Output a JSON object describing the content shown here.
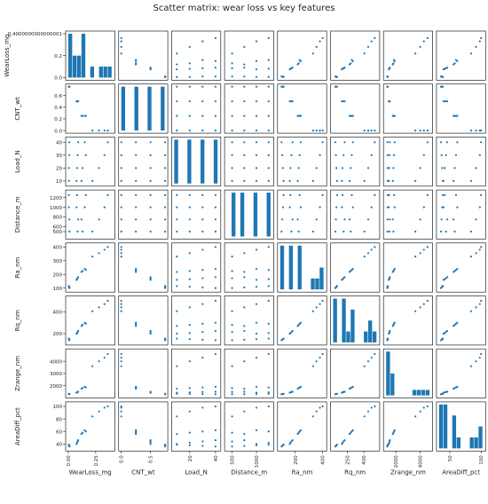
{
  "chart_data": {
    "type": "scatter",
    "title": "Scatter matrix: wear loss vs key features",
    "grid": false,
    "point_color": "#1f77b4",
    "variables": [
      {
        "name": "WearLoss_mg",
        "range": [
          0,
          0.4
        ],
        "ticks": [
          0.0,
          0.2,
          0.4
        ],
        "x_tick_labels": [
          "0.00",
          "0.25"
        ],
        "x_tick_values": [
          0.0,
          0.25
        ],
        "y_tick_labels": [
          "0.0",
          "0.2",
          "0.4000000000000001"
        ],
        "y_tick_values": [
          0.0,
          0.2,
          0.4
        ]
      },
      {
        "name": "CNT_wt",
        "range": [
          0,
          0.75
        ],
        "x_tick_labels": [
          "0.0",
          "0.5"
        ],
        "x_tick_values": [
          0.0,
          0.5
        ],
        "y_tick_labels": [
          "0.0",
          "0.2",
          "0.4",
          "0.6"
        ],
        "y_tick_values": [
          0.0,
          0.2,
          0.4,
          0.6
        ]
      },
      {
        "name": "Load_N",
        "range": [
          8,
          42
        ],
        "x_tick_labels": [
          "20",
          "40"
        ],
        "x_tick_values": [
          20,
          40
        ],
        "y_tick_labels": [
          "10",
          "20",
          "30",
          "40"
        ],
        "y_tick_values": [
          10,
          20,
          30,
          40
        ]
      },
      {
        "name": "Distance_m",
        "range": [
          400,
          1300
        ],
        "x_tick_labels": [
          "500",
          "1000"
        ],
        "x_tick_values": [
          500,
          1000
        ],
        "y_tick_labels": [
          "500",
          "600",
          "800",
          "1000",
          "1200"
        ],
        "y_tick_values": [
          500,
          600,
          800,
          1000,
          1200
        ]
      },
      {
        "name": "Ra_nm",
        "range": [
          90,
          410
        ],
        "x_tick_labels": [
          "200",
          "400"
        ],
        "x_tick_values": [
          200,
          400
        ],
        "y_tick_labels": [
          "100",
          "200",
          "300",
          "400"
        ],
        "y_tick_values": [
          100,
          200,
          300,
          400
        ]
      },
      {
        "name": "Rq_nm",
        "range": [
          120,
          520
        ],
        "x_tick_labels": [
          "250",
          "400"
        ],
        "x_tick_values": [
          250,
          400
        ],
        "y_tick_labels": [
          "200",
          "400"
        ],
        "y_tick_values": [
          200,
          400
        ]
      },
      {
        "name": "Zrange_nm",
        "range": [
          1200,
          4800
        ],
        "x_tick_labels": [
          "2000",
          "4000"
        ],
        "x_tick_values": [
          2000,
          4000
        ],
        "y_tick_labels": [
          "2000",
          "3000",
          "4000"
        ],
        "y_tick_values": [
          2000,
          3000,
          4000
        ]
      },
      {
        "name": "AreaDiff_pct",
        "range": [
          33,
          103
        ],
        "x_tick_labels": [
          "50",
          "100"
        ],
        "x_tick_values": [
          50,
          100
        ],
        "y_tick_labels": [
          "40",
          "60",
          "80",
          "100"
        ],
        "y_tick_values": [
          40,
          60,
          80,
          100
        ]
      }
    ],
    "samples": [
      {
        "WearLoss_mg": 0.36,
        "CNT_wt": 0.0,
        "Load_N": 40,
        "Distance_m": 1250,
        "Ra_nm": 400,
        "Rq_nm": 500,
        "Zrange_nm": 4600,
        "AreaDiff_pct": 100
      },
      {
        "WearLoss_mg": 0.33,
        "CNT_wt": 0.0,
        "Load_N": 30,
        "Distance_m": 1000,
        "Ra_nm": 380,
        "Rq_nm": 470,
        "Zrange_nm": 4300,
        "AreaDiff_pct": 98
      },
      {
        "WearLoss_mg": 0.28,
        "CNT_wt": 0.0,
        "Load_N": 20,
        "Distance_m": 750,
        "Ra_nm": 355,
        "Rq_nm": 440,
        "Zrange_nm": 4000,
        "AreaDiff_pct": 92
      },
      {
        "WearLoss_mg": 0.22,
        "CNT_wt": 0.0,
        "Load_N": 10,
        "Distance_m": 500,
        "Ra_nm": 330,
        "Rq_nm": 405,
        "Zrange_nm": 3600,
        "AreaDiff_pct": 84
      },
      {
        "WearLoss_mg": 0.15,
        "CNT_wt": 0.25,
        "Load_N": 40,
        "Distance_m": 1000,
        "Ra_nm": 240,
        "Rq_nm": 300,
        "Zrange_nm": 1900,
        "AreaDiff_pct": 62
      },
      {
        "WearLoss_mg": 0.16,
        "CNT_wt": 0.25,
        "Load_N": 30,
        "Distance_m": 1250,
        "Ra_nm": 232,
        "Rq_nm": 290,
        "Zrange_nm": 1850,
        "AreaDiff_pct": 60
      },
      {
        "WearLoss_mg": 0.13,
        "CNT_wt": 0.25,
        "Load_N": 20,
        "Distance_m": 500,
        "Ra_nm": 225,
        "Rq_nm": 280,
        "Zrange_nm": 1800,
        "AreaDiff_pct": 58
      },
      {
        "WearLoss_mg": 0.12,
        "CNT_wt": 0.25,
        "Load_N": 10,
        "Distance_m": 750,
        "Ra_nm": 218,
        "Rq_nm": 270,
        "Zrange_nm": 1750,
        "AreaDiff_pct": 56
      },
      {
        "WearLoss_mg": 0.09,
        "CNT_wt": 0.5,
        "Load_N": 40,
        "Distance_m": 750,
        "Ra_nm": 180,
        "Rq_nm": 225,
        "Zrange_nm": 1500,
        "AreaDiff_pct": 46
      },
      {
        "WearLoss_mg": 0.085,
        "CNT_wt": 0.5,
        "Load_N": 30,
        "Distance_m": 500,
        "Ra_nm": 172,
        "Rq_nm": 215,
        "Zrange_nm": 1480,
        "AreaDiff_pct": 44
      },
      {
        "WearLoss_mg": 0.08,
        "CNT_wt": 0.5,
        "Load_N": 20,
        "Distance_m": 1250,
        "Ra_nm": 165,
        "Rq_nm": 205,
        "Zrange_nm": 1450,
        "AreaDiff_pct": 42
      },
      {
        "WearLoss_mg": 0.075,
        "CNT_wt": 0.5,
        "Load_N": 10,
        "Distance_m": 1000,
        "Ra_nm": 160,
        "Rq_nm": 200,
        "Zrange_nm": 1420,
        "AreaDiff_pct": 40
      },
      {
        "WearLoss_mg": 0.01,
        "CNT_wt": 0.75,
        "Load_N": 40,
        "Distance_m": 500,
        "Ra_nm": 100,
        "Rq_nm": 140,
        "Zrange_nm": 1300,
        "AreaDiff_pct": 36
      },
      {
        "WearLoss_mg": 0.01,
        "CNT_wt": 0.75,
        "Load_N": 30,
        "Distance_m": 750,
        "Ra_nm": 105,
        "Rq_nm": 145,
        "Zrange_nm": 1310,
        "AreaDiff_pct": 37
      },
      {
        "WearLoss_mg": 0.005,
        "CNT_wt": 0.75,
        "Load_N": 20,
        "Distance_m": 1000,
        "Ra_nm": 110,
        "Rq_nm": 150,
        "Zrange_nm": 1320,
        "AreaDiff_pct": 38
      },
      {
        "WearLoss_mg": 0.005,
        "CNT_wt": 0.75,
        "Load_N": 10,
        "Distance_m": 1250,
        "Ra_nm": 115,
        "Rq_nm": 155,
        "Zrange_nm": 1330,
        "AreaDiff_pct": 39
      }
    ]
  }
}
